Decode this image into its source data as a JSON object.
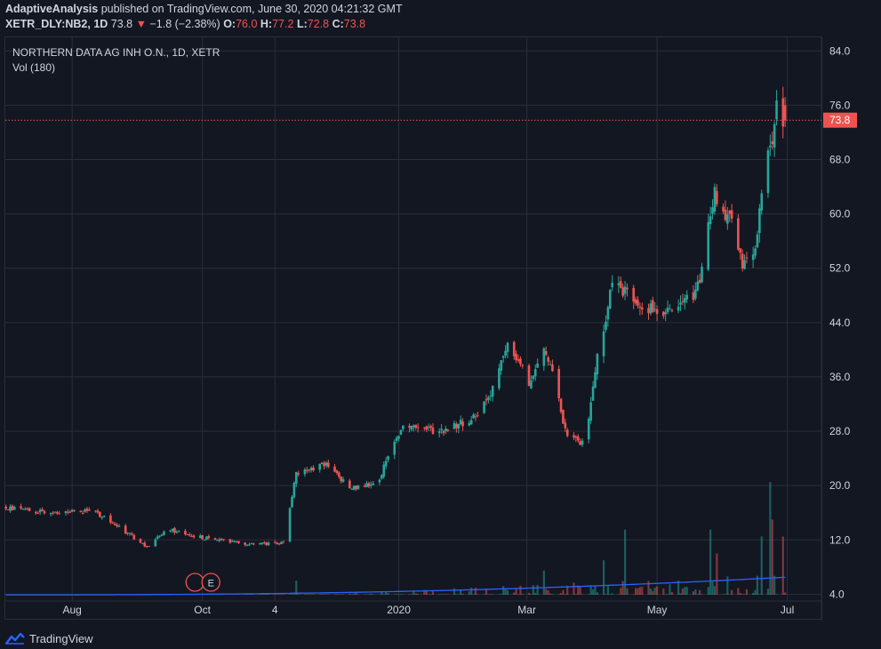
{
  "header": {
    "author": "AdaptiveAnalysis",
    "published_text": "published on TradingView.com, June 30, 2020 04:21:32 GMT",
    "symbol_line": "XETR_DLY:NB2, 1D",
    "last": "73.8",
    "change": "−1.8 (−2.38%)",
    "open_label": "O:",
    "open": "76.0",
    "high_label": "H:",
    "high": "77.2",
    "low_label": "L:",
    "low": "72.8",
    "close_label": "C:",
    "close": "73.8"
  },
  "legend": {
    "title": "NORTHERN DATA AG INH O.N., 1D, XETR",
    "volume": "Vol (180)"
  },
  "footer": {
    "brand": "TradingView"
  },
  "colors": {
    "background": "#131722",
    "grid": "#2a2e39",
    "up": "#26a69a",
    "down": "#ef5350",
    "volume_ma": "#2962ff",
    "price_line": "#ef5350"
  },
  "chart_data": {
    "type": "candlestick",
    "price_axis": {
      "ticks": [
        "84.0",
        "76.0",
        "68.0",
        "60.0",
        "52.0",
        "44.0",
        "36.0",
        "28.0",
        "20.0",
        "12.0",
        "4.0"
      ],
      "ylim": [
        3,
        86
      ]
    },
    "time_axis": {
      "ticks": [
        "Aug",
        "Oct",
        "4",
        "2020",
        "Mar",
        "May",
        "Jul"
      ]
    },
    "last_price_label": "73.8",
    "earnings_marker": "E",
    "anchors": [
      [
        "2019-07-01",
        16.8
      ],
      [
        "2019-07-20",
        16.0
      ],
      [
        "2019-08-10",
        16.2
      ],
      [
        "2019-08-20",
        14.5
      ],
      [
        "2019-09-05",
        11.0
      ],
      [
        "2019-09-15",
        13.5
      ],
      [
        "2019-10-01",
        12.3
      ],
      [
        "2019-10-20",
        11.5
      ],
      [
        "2019-11-08",
        11.5
      ],
      [
        "2019-11-14",
        22.0
      ],
      [
        "2019-11-28",
        23.0
      ],
      [
        "2019-12-10",
        19.5
      ],
      [
        "2019-12-22",
        20.5
      ],
      [
        "2020-01-03",
        29.0
      ],
      [
        "2020-01-20",
        28.0
      ],
      [
        "2020-02-05",
        30.0
      ],
      [
        "2020-02-12",
        33.0
      ],
      [
        "2020-02-22",
        41.0
      ],
      [
        "2020-03-02",
        35.0
      ],
      [
        "2020-03-10",
        40.0
      ],
      [
        "2020-03-20",
        27.0
      ],
      [
        "2020-03-28",
        26.0
      ],
      [
        "2020-04-02",
        37.0
      ],
      [
        "2020-04-10",
        50.0
      ],
      [
        "2020-04-25",
        46.5
      ],
      [
        "2020-05-08",
        45.0
      ],
      [
        "2020-05-20",
        49.0
      ],
      [
        "2020-05-28",
        63.0
      ],
      [
        "2020-06-05",
        58.5
      ],
      [
        "2020-06-10",
        52.0
      ],
      [
        "2020-06-15",
        54.0
      ],
      [
        "2020-06-22",
        68.0
      ],
      [
        "2020-06-26",
        75.5
      ],
      [
        "2020-06-30",
        73.8
      ]
    ],
    "last_bar": {
      "open": 76.0,
      "high": 77.2,
      "low": 72.8,
      "close": 73.8
    },
    "volume_spikes": [
      [
        "2019-11-14",
        6.0
      ],
      [
        "2020-03-09",
        7.5
      ],
      [
        "2020-04-06",
        9.0
      ],
      [
        "2020-04-16",
        13.5
      ],
      [
        "2020-05-26",
        13.5
      ],
      [
        "2020-05-29",
        10.0
      ],
      [
        "2020-06-19",
        12.5
      ],
      [
        "2020-06-23",
        20.5
      ],
      [
        "2020-06-24",
        15.0
      ],
      [
        "2020-06-29",
        12.5
      ]
    ]
  }
}
